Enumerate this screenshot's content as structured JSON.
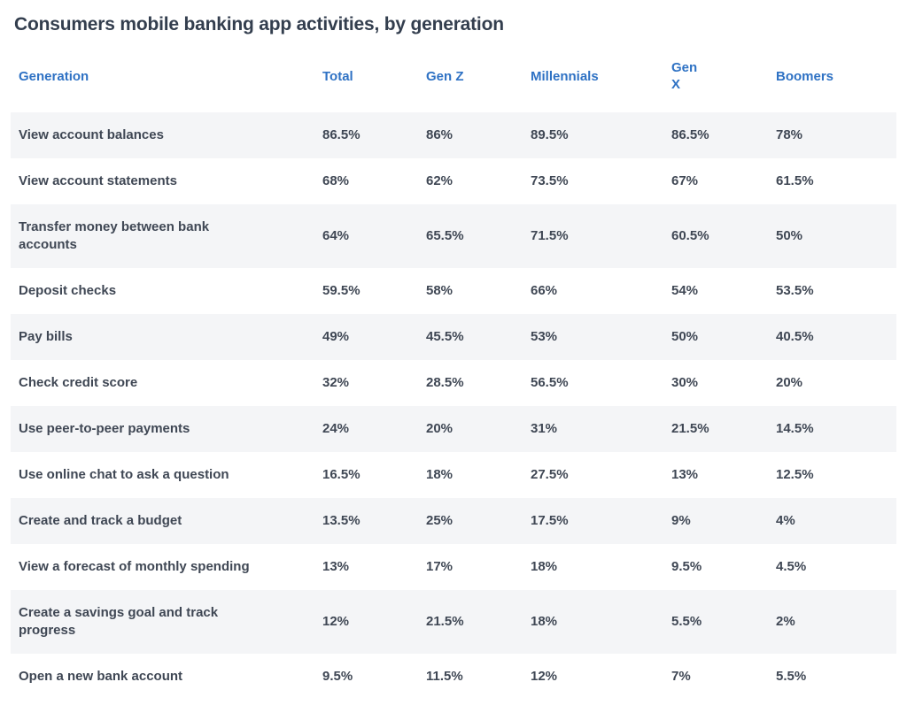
{
  "page": {
    "title": "Consumers mobile banking app activities, by generation"
  },
  "table": {
    "columns": [
      "Generation",
      "Total",
      "Gen Z",
      "Millennials",
      "Gen X",
      "Boomers"
    ]
  },
  "colors": {
    "header_blue": "#2f72c4",
    "body_text": "#3f4754",
    "title_text": "#333e4e",
    "row_shade": "#f4f5f7",
    "background": "#ffffff"
  },
  "chart_data": {
    "type": "table",
    "title": "Consumers mobile banking app activities, by generation",
    "unit": "%",
    "columns": [
      "Generation",
      "Total",
      "Gen Z",
      "Millennials",
      "Gen X",
      "Boomers"
    ],
    "categories": [
      "Total",
      "Gen Z",
      "Millennials",
      "Gen X",
      "Boomers"
    ],
    "series": [
      {
        "name": "View account balances",
        "values": [
          86.5,
          86,
          89.5,
          86.5,
          78
        ]
      },
      {
        "name": "View account statements",
        "values": [
          68,
          62,
          73.5,
          67,
          61.5
        ]
      },
      {
        "name": "Transfer money between bank accounts",
        "values": [
          64,
          65.5,
          71.5,
          60.5,
          50
        ]
      },
      {
        "name": "Deposit checks",
        "values": [
          59.5,
          58,
          66,
          54,
          53.5
        ]
      },
      {
        "name": "Pay bills",
        "values": [
          49,
          45.5,
          53,
          50,
          40.5
        ]
      },
      {
        "name": "Check credit score",
        "values": [
          32,
          28.5,
          56.5,
          30,
          20
        ]
      },
      {
        "name": "Use peer-to-peer payments",
        "values": [
          24,
          20,
          31,
          21.5,
          14.5
        ]
      },
      {
        "name": "Use online chat to ask a question",
        "values": [
          16.5,
          18,
          27.5,
          13,
          12.5
        ]
      },
      {
        "name": "Create and track a budget",
        "values": [
          13.5,
          25,
          17.5,
          9,
          4
        ]
      },
      {
        "name": "View a forecast of monthly spending",
        "values": [
          13,
          17,
          18,
          9.5,
          4.5
        ]
      },
      {
        "name": "Create a savings goal and track progress",
        "values": [
          12,
          21.5,
          18,
          5.5,
          2
        ]
      },
      {
        "name": "Open a new bank account",
        "values": [
          9.5,
          11.5,
          12,
          7,
          5.5
        ]
      }
    ]
  }
}
